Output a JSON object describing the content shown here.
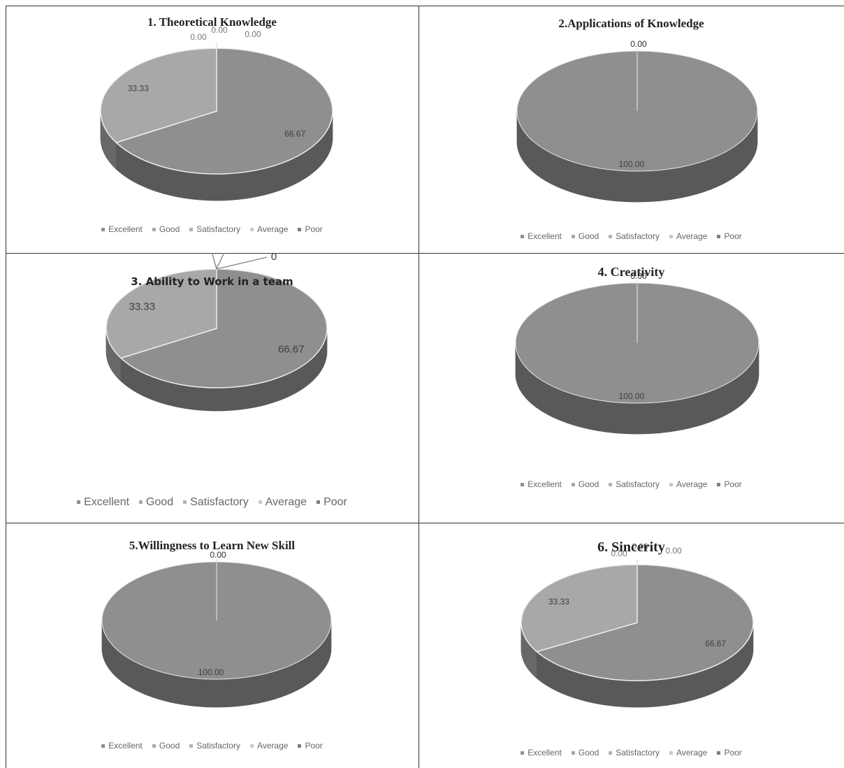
{
  "colors": {
    "Excellent": "#8f8f8f",
    "Good": "#a8a8a8",
    "Satisfactory": "#b3b3b3",
    "Average": "#c9c9c9",
    "Poor": "#7d7d7d"
  },
  "chart_data": [
    {
      "type": "pie",
      "style": "3d",
      "title": "1. Theoretical Knowledge",
      "categories": [
        "Excellent",
        "Good",
        "Satisfactory",
        "Average",
        "Poor"
      ],
      "values": [
        66.67,
        33.33,
        0,
        0,
        0
      ],
      "value_labels": [
        "66.67",
        "33.33",
        "0.00",
        "0.00",
        "0.00"
      ],
      "legend_position": "bottom"
    },
    {
      "type": "pie",
      "style": "3d",
      "title": "2.Applications of Knowledge",
      "categories": [
        "Excellent",
        "Good",
        "Satisfactory",
        "Average",
        "Poor"
      ],
      "values": [
        100,
        0,
        0,
        0,
        0
      ],
      "value_labels": [
        "100.00",
        "0.00",
        "0.00",
        "0.00",
        "0.00"
      ],
      "legend_position": "bottom"
    },
    {
      "type": "pie",
      "style": "3d",
      "title": "3. Ability to Work in a team",
      "categories": [
        "Excellent",
        "Good",
        "Satisfactory",
        "Average",
        "Poor"
      ],
      "values": [
        66.67,
        33.33,
        0,
        0,
        0
      ],
      "value_labels": [
        "66.67",
        "33.33",
        "0",
        "0",
        "0"
      ],
      "legend_position": "bottom"
    },
    {
      "type": "pie",
      "style": "3d",
      "title": "4. Creativity",
      "categories": [
        "Excellent",
        "Good",
        "Satisfactory",
        "Average",
        "Poor"
      ],
      "values": [
        100,
        0,
        0,
        0,
        0
      ],
      "value_labels": [
        "100.00",
        "0.00",
        "0.00",
        "0.00",
        "0.00"
      ],
      "legend_position": "bottom"
    },
    {
      "type": "pie",
      "style": "3d",
      "title": "5.Willingness to Learn New Skill",
      "categories": [
        "Excellent",
        "Good",
        "Satisfactory",
        "Average",
        "Poor"
      ],
      "values": [
        100,
        0,
        0,
        0,
        0
      ],
      "value_labels": [
        "100.00",
        "0.00",
        "0.00",
        "0.00",
        "0.00"
      ],
      "legend_position": "bottom"
    },
    {
      "type": "pie",
      "style": "3d",
      "title": "6. Sincerity",
      "categories": [
        "Excellent",
        "Good",
        "Satisfactory",
        "Average",
        "Poor"
      ],
      "values": [
        66.67,
        33.33,
        0,
        0,
        0
      ],
      "value_labels": [
        "66.67",
        "33.33",
        "0.00",
        "0.00",
        "0.00"
      ],
      "legend_position": "bottom"
    }
  ]
}
